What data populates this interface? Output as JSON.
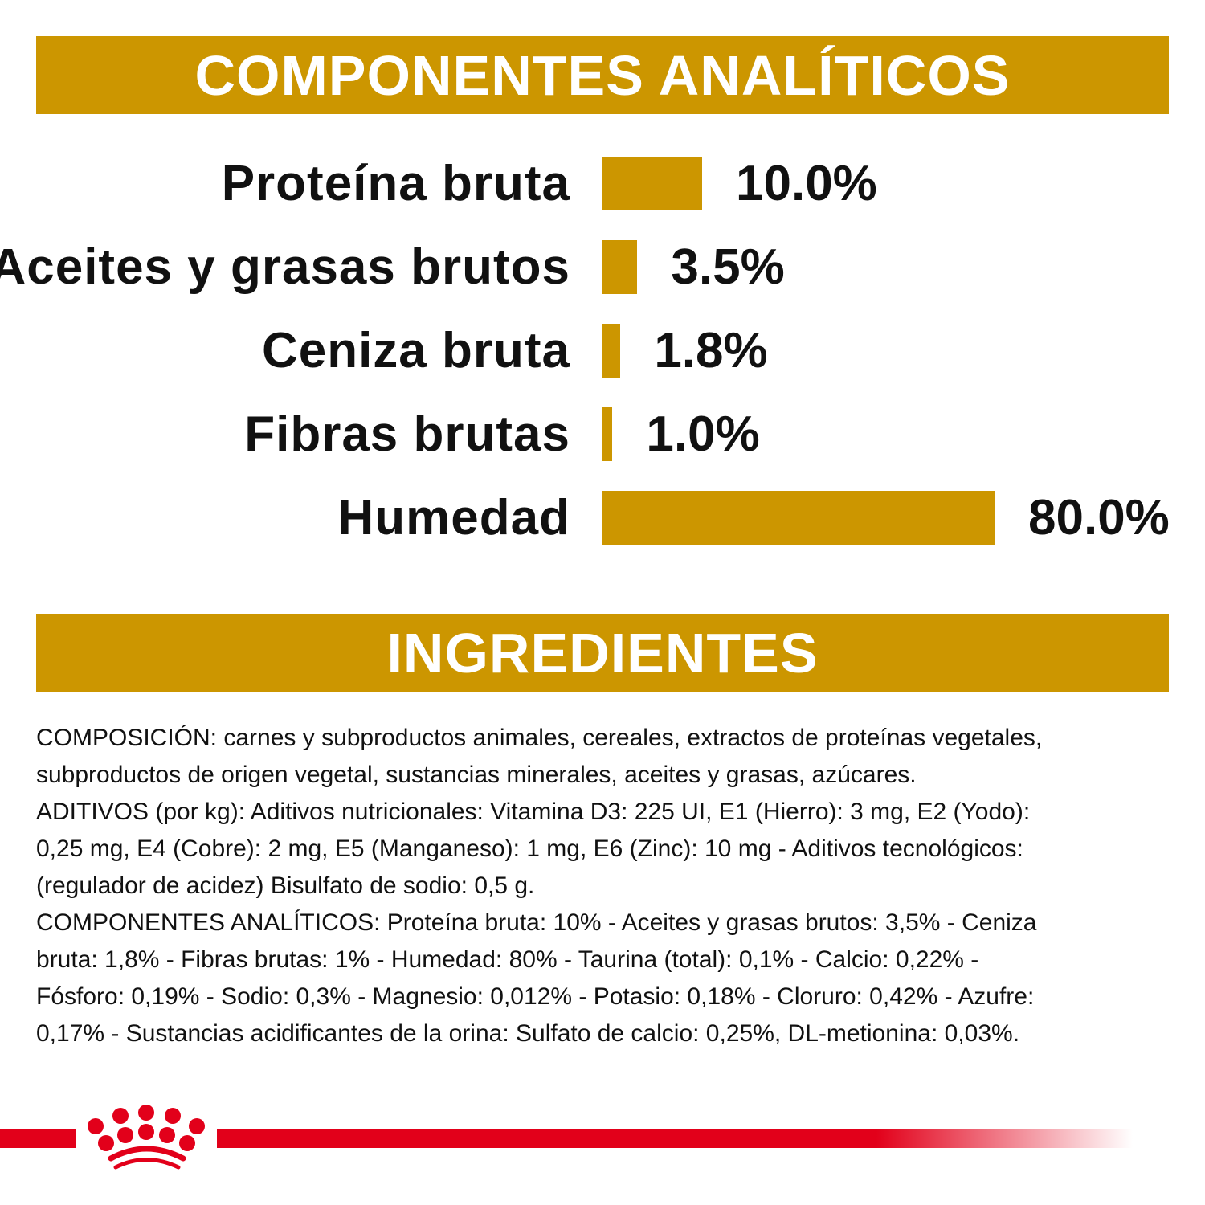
{
  "chart_data": {
    "type": "bar",
    "orientation": "horizontal",
    "title": "COMPONENTES ANALÍTICOS",
    "categories": [
      "Proteína bruta",
      "Aceites y grasas brutos",
      "Ceniza bruta",
      "Fibras brutas",
      "Humedad"
    ],
    "values": [
      10.0,
      3.5,
      1.8,
      1.0,
      80.0
    ],
    "value_labels": [
      "10.0%",
      "3.5%",
      "1.8%",
      "1.0%",
      "80.0%"
    ],
    "unit": "%",
    "bar_color": "#CC9600"
  },
  "ingredients": {
    "title": "INGREDIENTES",
    "lines": [
      "COMPOSICIÓN: carnes y subproductos animales, cereales, extractos de proteínas vegetales,",
      "subproductos de origen vegetal, sustancias minerales, aceites y grasas, azúcares.",
      "ADITIVOS (por kg): Aditivos nutricionales: Vitamina D3: 225 UI, E1 (Hierro): 3 mg, E2 (Yodo):",
      "0,25 mg, E4 (Cobre): 2 mg, E5 (Manganeso): 1 mg, E6 (Zinc): 10 mg - Aditivos tecnológicos:",
      "(regulador de acidez) Bisulfato de sodio: 0,5 g.",
      "COMPONENTES ANALÍTICOS: Proteína bruta: 10% - Aceites y grasas brutos: 3,5% - Ceniza",
      "bruta: 1,8% - Fibras brutas: 1% - Humedad: 80% - Taurina (total): 0,1% - Calcio: 0,22% -",
      "Fósforo: 0,19% - Sodio: 0,3% - Magnesio: 0,012% - Potasio: 0,18% - Cloruro: 0,42% - Azufre:",
      "0,17% - Sustancias acidificantes de la orina: Sulfato de calcio: 0,25%, DL-metionina: 0,03%."
    ]
  },
  "colors": {
    "gold": "#CC9600",
    "brand_red": "#E2001A"
  },
  "logo": {
    "icon": "crown-icon"
  }
}
